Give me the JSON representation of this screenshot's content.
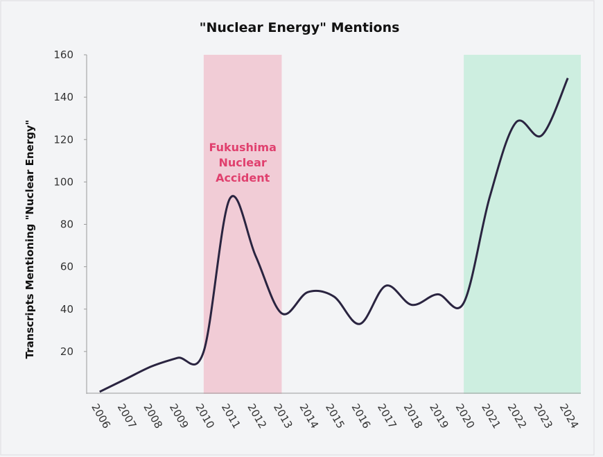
{
  "chart_data": {
    "type": "line",
    "title": "\"Nuclear Energy\" Mentions",
    "y_label": "Transcripts Mentioning \"Nuclear Energy\"",
    "categories": [
      "2006",
      "2007",
      "2008",
      "2009",
      "2010",
      "2011",
      "2012",
      "2013",
      "2014",
      "2015",
      "2016",
      "2017",
      "2018",
      "2019",
      "2020",
      "2021",
      "2022",
      "2023",
      "2024"
    ],
    "values": [
      1,
      7,
      13,
      17,
      20,
      92,
      65,
      38,
      48,
      46,
      33,
      51,
      42,
      47,
      43,
      93,
      128,
      122,
      149
    ],
    "color": "#2a2440",
    "ylim": [
      0,
      160
    ],
    "yticks": [
      20,
      40,
      60,
      80,
      100,
      120,
      140,
      160
    ],
    "highlights": [
      {
        "start": "2010",
        "end": "2013",
        "color": "#f1ccd6",
        "label": [
          "Fukushima",
          "Nuclear",
          "Accident"
        ],
        "label_color": "#e0406e"
      },
      {
        "start": "2020",
        "end": "2024",
        "color": "#cdeee0"
      }
    ]
  }
}
